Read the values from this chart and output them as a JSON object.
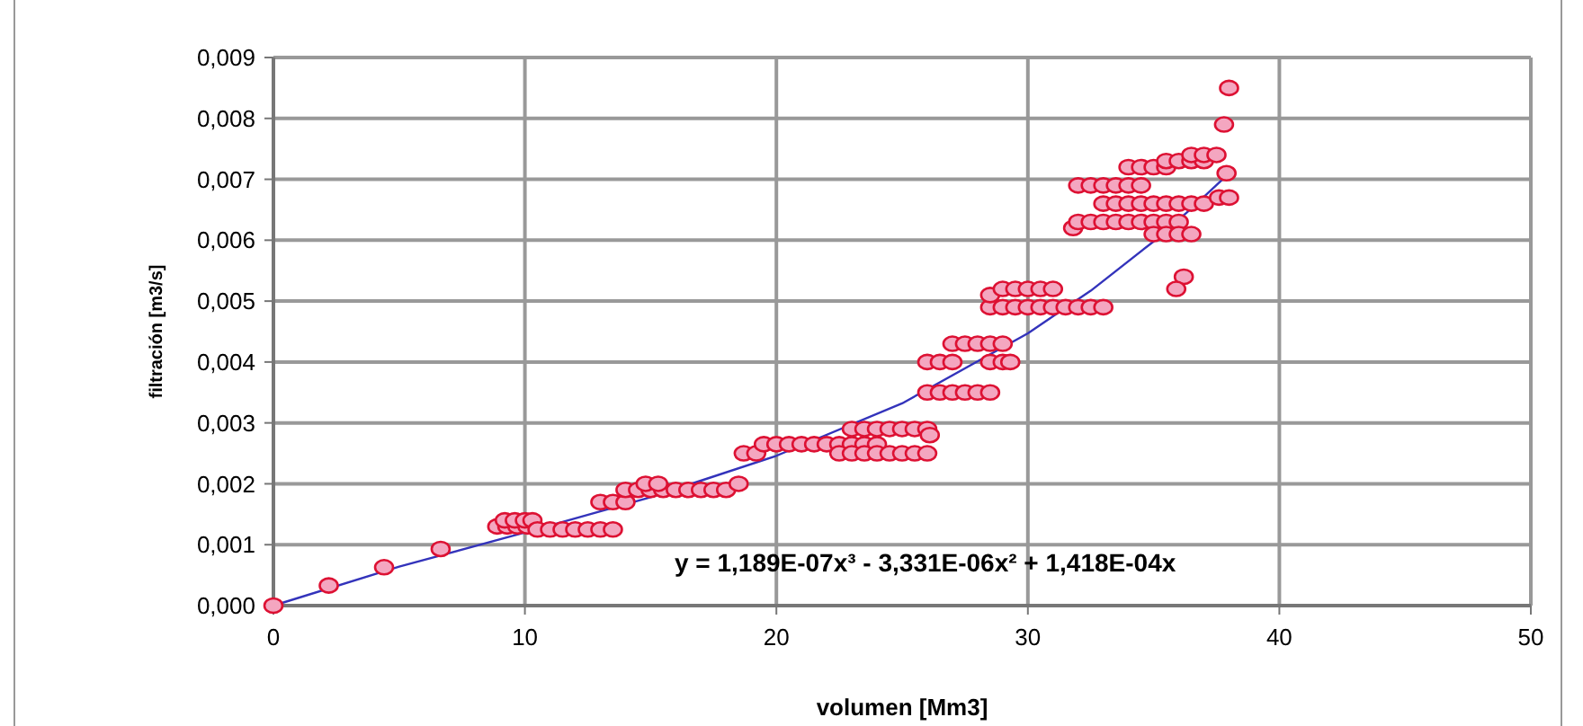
{
  "chart_data": {
    "type": "scatter",
    "xlabel": "volumen [Mm3]",
    "ylabel": "filtración [m3/s]",
    "xlim": [
      0,
      50
    ],
    "xticks": [
      0,
      10,
      20,
      30,
      40,
      50
    ],
    "ylim": [
      0,
      0.009
    ],
    "yticks": [
      {
        "value": 0,
        "label": "0,000"
      },
      {
        "value": 0.001,
        "label": "0,001"
      },
      {
        "value": 0.002,
        "label": "0,002"
      },
      {
        "value": 0.003,
        "label": "0,003"
      },
      {
        "value": 0.004,
        "label": "0,004"
      },
      {
        "value": 0.005,
        "label": "0,005"
      },
      {
        "value": 0.006,
        "label": "0,006"
      },
      {
        "value": 0.007,
        "label": "0,007"
      },
      {
        "value": 0.008,
        "label": "0,008"
      },
      {
        "value": 0.009,
        "label": "0,009"
      }
    ],
    "grid": true,
    "marker": "circle",
    "annotations": [
      "y = 1,189E-07x³ - 3,331E-06x² + 1,418E-04x"
    ],
    "series": [
      {
        "color": "#dd1133",
        "x": [
          0,
          2.2,
          4.4,
          6.65,
          8.9,
          9.3,
          9.7,
          10.1,
          9.2,
          9.6,
          10,
          10.3,
          10.5,
          11,
          11.5,
          12,
          12.5,
          13,
          13.5,
          13,
          13.5,
          14,
          14,
          14.5,
          15,
          15.5,
          16,
          16.5,
          17,
          17.5,
          18,
          14.8,
          15.3,
          18.5,
          18.7,
          19.2,
          19.5,
          20,
          20.5,
          21,
          21.5,
          22,
          22.5,
          23,
          23.5,
          24,
          22.5,
          23,
          23.5,
          24,
          24.5,
          25,
          25.5,
          26,
          23,
          23.5,
          24,
          24.5,
          25,
          25.5,
          26,
          26.1,
          26,
          26.5,
          27,
          27.5,
          28,
          28.5,
          26,
          26.5,
          27,
          28.5,
          29,
          29.3,
          27,
          27.5,
          28,
          28.5,
          29,
          28.5,
          29,
          29.5,
          30,
          30.5,
          31,
          31.5,
          32,
          32.5,
          33,
          28.5,
          29,
          29.5,
          30,
          30.5,
          31,
          31.8,
          32,
          32.5,
          33,
          33.5,
          34,
          34.5,
          35,
          35.5,
          36,
          33,
          33.5,
          34,
          34.5,
          35,
          35.5,
          36,
          36.5,
          37,
          32,
          32.5,
          33,
          33.5,
          34,
          34.5,
          34,
          34.5,
          35,
          35.5,
          35.5,
          36,
          36.5,
          37,
          36.5,
          37,
          37.5,
          35,
          35.5,
          36,
          36.5,
          36.2,
          35.9,
          37.6,
          38,
          37.9,
          37.8,
          38
        ],
        "values": [
          0,
          0.00033,
          0.00063,
          0.00093,
          0.0013,
          0.0013,
          0.0013,
          0.0013,
          0.0014,
          0.0014,
          0.0014,
          0.0014,
          0.00125,
          0.00125,
          0.00125,
          0.00125,
          0.00125,
          0.00125,
          0.00125,
          0.0017,
          0.0017,
          0.0017,
          0.0019,
          0.0019,
          0.0019,
          0.0019,
          0.0019,
          0.0019,
          0.0019,
          0.0019,
          0.0019,
          0.002,
          0.002,
          0.002,
          0.0025,
          0.0025,
          0.00265,
          0.00265,
          0.00265,
          0.00265,
          0.00265,
          0.00265,
          0.00265,
          0.00265,
          0.00265,
          0.00265,
          0.0025,
          0.0025,
          0.0025,
          0.0025,
          0.0025,
          0.0025,
          0.0025,
          0.0025,
          0.0029,
          0.0029,
          0.0029,
          0.0029,
          0.0029,
          0.0029,
          0.0029,
          0.0028,
          0.0035,
          0.0035,
          0.0035,
          0.0035,
          0.0035,
          0.0035,
          0.004,
          0.004,
          0.004,
          0.004,
          0.004,
          0.004,
          0.0043,
          0.0043,
          0.0043,
          0.0043,
          0.0043,
          0.0049,
          0.0049,
          0.0049,
          0.0049,
          0.0049,
          0.0049,
          0.0049,
          0.0049,
          0.0049,
          0.0049,
          0.0051,
          0.0052,
          0.0052,
          0.0052,
          0.0052,
          0.0052,
          0.0062,
          0.0063,
          0.0063,
          0.0063,
          0.0063,
          0.0063,
          0.0063,
          0.0063,
          0.0063,
          0.0063,
          0.0066,
          0.0066,
          0.0066,
          0.0066,
          0.0066,
          0.0066,
          0.0066,
          0.0066,
          0.0066,
          0.0069,
          0.0069,
          0.0069,
          0.0069,
          0.0069,
          0.0069,
          0.0072,
          0.0072,
          0.0072,
          0.0072,
          0.0073,
          0.0073,
          0.0073,
          0.0073,
          0.0074,
          0.0074,
          0.0074,
          0.0061,
          0.0061,
          0.0061,
          0.0061,
          0.0054,
          0.0052,
          0.0067,
          0.0067,
          0.0071,
          0.0079,
          0.0085
        ]
      },
      {
        "type": "line",
        "color": "#3333bb",
        "marker": "none",
        "x": [
          0,
          5,
          10,
          15,
          20,
          25,
          30,
          32.5,
          35,
          36.5,
          38
        ],
        "values": [
          0,
          0.00064,
          0.0012,
          0.00178,
          0.00246,
          0.00332,
          0.00447,
          0.00517,
          0.00598,
          0.00652,
          0.0071
        ]
      }
    ]
  }
}
